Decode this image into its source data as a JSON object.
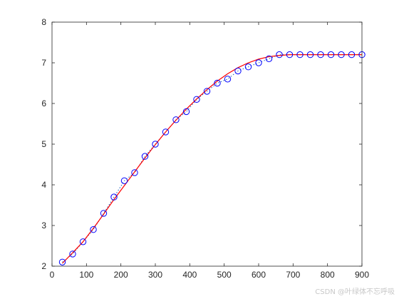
{
  "chart_data": {
    "type": "scatter",
    "title": "",
    "xlabel": "",
    "ylabel": "",
    "xlim": [
      0,
      900
    ],
    "ylim": [
      2,
      8
    ],
    "x_ticks": [
      0,
      100,
      200,
      300,
      400,
      500,
      600,
      700,
      800,
      900
    ],
    "y_ticks": [
      2,
      3,
      4,
      5,
      6,
      7,
      8
    ],
    "grid": false,
    "legend": "none",
    "series": [
      {
        "type": "scatter",
        "marker": "circle-open",
        "color": "#0000ff",
        "x": [
          30,
          60,
          90,
          120,
          150,
          180,
          210,
          240,
          270,
          300,
          330,
          360,
          390,
          420,
          450,
          480,
          510,
          540,
          570,
          600,
          630,
          660,
          690,
          720,
          750,
          780,
          810,
          840,
          870,
          900
        ],
        "y": [
          2.1,
          2.3,
          2.6,
          2.9,
          3.3,
          3.7,
          4.1,
          4.3,
          4.7,
          5.0,
          5.3,
          5.6,
          5.8,
          6.1,
          6.3,
          6.5,
          6.6,
          6.8,
          6.9,
          7.0,
          7.1,
          7.2,
          7.2,
          7.2,
          7.2,
          7.2,
          7.2,
          7.2,
          7.2,
          7.2
        ]
      },
      {
        "type": "line",
        "style": "dotted",
        "color": "#1f5fbf",
        "x": [
          30,
          60,
          90,
          120,
          150,
          180,
          210,
          240,
          270,
          300,
          330,
          360,
          390,
          420,
          450,
          480,
          510,
          540,
          570,
          600,
          630,
          660,
          690,
          720,
          750,
          780,
          810,
          840,
          870,
          900
        ],
        "y": [
          2.1,
          2.3,
          2.6,
          2.9,
          3.3,
          3.7,
          4.1,
          4.3,
          4.7,
          5.0,
          5.3,
          5.6,
          5.8,
          6.1,
          6.3,
          6.5,
          6.6,
          6.8,
          6.9,
          7.0,
          7.1,
          7.2,
          7.2,
          7.2,
          7.2,
          7.2,
          7.2,
          7.2,
          7.2,
          7.2
        ]
      },
      {
        "type": "line",
        "style": "solid",
        "color": "#ff0000",
        "x": [
          30,
          60,
          90,
          120,
          150,
          180,
          210,
          240,
          270,
          300,
          330,
          360,
          390,
          420,
          450,
          480,
          510,
          540,
          570,
          600,
          630,
          660,
          690,
          720,
          750,
          780,
          810,
          840,
          870,
          900
        ],
        "y": [
          2.07,
          2.33,
          2.6,
          2.93,
          3.28,
          3.64,
          3.98,
          4.32,
          4.66,
          4.99,
          5.3,
          5.59,
          5.86,
          6.11,
          6.34,
          6.55,
          6.73,
          6.88,
          7.0,
          7.09,
          7.15,
          7.18,
          7.2,
          7.2,
          7.2,
          7.2,
          7.2,
          7.2,
          7.2,
          7.2
        ]
      }
    ]
  },
  "watermark": "CSDN @叶绿体不忘呼吸"
}
